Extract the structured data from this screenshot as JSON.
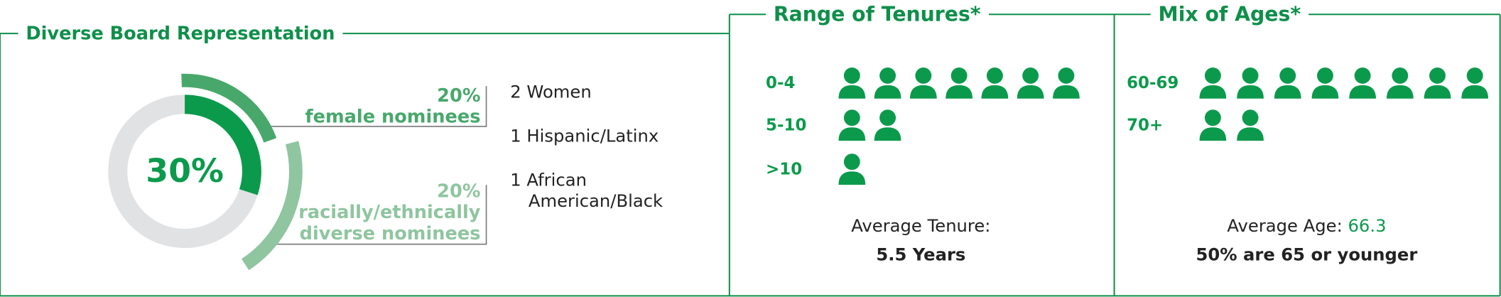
{
  "board": {
    "title": "Diverse Board Representation",
    "total": {
      "value": 30,
      "label": "30%",
      "color": "#0b9a4c"
    },
    "segments": [
      {
        "value": 20,
        "label": "20%",
        "caption": "female nominees",
        "color": "#48a86b"
      },
      {
        "value": 20,
        "label": "20%",
        "caption": "racially/ethnically diverse nominees",
        "color": "#8fc59f"
      }
    ],
    "details": [
      "2 Women",
      "1 Hispanic/Latinx",
      "1 African American/Black"
    ]
  },
  "tenures": {
    "title": "Range of Tenures*",
    "rows": [
      {
        "label": "0-4",
        "count": 7
      },
      {
        "label": "5-10",
        "count": 2
      },
      {
        "label": ">10",
        "count": 1
      }
    ],
    "average_label": "Average Tenure:",
    "average": "5.5 Years"
  },
  "ages": {
    "title": "Mix of Ages*",
    "rows": [
      {
        "label": "60-69",
        "count": 8
      },
      {
        "label": "70+",
        "count": 2
      }
    ],
    "average_label": "Average Age:",
    "average": 66.3,
    "note": "50% are 65 or younger"
  }
}
